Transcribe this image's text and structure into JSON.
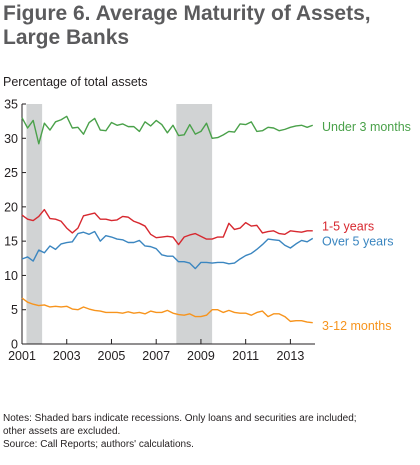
{
  "figure": {
    "title_line1": "Figure 6. Average Maturity of Assets,",
    "title_line2": "Large Banks",
    "notes_line1": "Notes: Shaded bars indicate recessions. Only loans and securities are included;",
    "notes_line2": "other assets are excluded.",
    "source": "Source: Call Reports; authors' calculations."
  },
  "chart_data": {
    "type": "line",
    "title": "Figure 6. Average Maturity of Assets, Large Banks",
    "ylabel": "Percentage of total assets",
    "xlabel": "",
    "xlim": [
      2001,
      2014.1
    ],
    "ylim": [
      0,
      35
    ],
    "x_ticks": [
      2001,
      2003,
      2005,
      2007,
      2009,
      2011,
      2013
    ],
    "y_ticks": [
      0,
      5,
      10,
      15,
      20,
      25,
      30,
      35
    ],
    "grid": false,
    "legend": "direct labels at right end of each line",
    "recessions": [
      [
        2001.2,
        2001.9
      ],
      [
        2007.9,
        2009.5
      ]
    ],
    "series": [
      {
        "name": "Under 3 months",
        "color": "#4aa14a",
        "x": [
          2001.0,
          2001.25,
          2001.5,
          2001.75,
          2002.0,
          2002.25,
          2002.5,
          2002.75,
          2003.0,
          2003.25,
          2003.5,
          2003.75,
          2004.0,
          2004.25,
          2004.5,
          2004.75,
          2005.0,
          2005.25,
          2005.5,
          2005.75,
          2006.0,
          2006.25,
          2006.5,
          2006.75,
          2007.0,
          2007.25,
          2007.5,
          2007.75,
          2008.0,
          2008.25,
          2008.5,
          2008.75,
          2009.0,
          2009.25,
          2009.5,
          2009.75,
          2010.0,
          2010.25,
          2010.5,
          2010.75,
          2011.0,
          2011.25,
          2011.5,
          2011.75,
          2012.0,
          2012.25,
          2012.5,
          2012.75,
          2013.0,
          2013.25,
          2013.5,
          2013.75,
          2014.0
        ],
        "values": [
          33.0,
          31.5,
          32.6,
          29.2,
          32.2,
          31.2,
          32.4,
          32.7,
          33.2,
          31.5,
          31.6,
          30.6,
          32.3,
          32.9,
          31.2,
          31.1,
          32.3,
          31.9,
          32.1,
          31.7,
          31.7,
          31.0,
          32.4,
          31.8,
          32.6,
          32.0,
          30.8,
          31.9,
          30.4,
          30.5,
          32.0,
          30.6,
          31.0,
          32.2,
          30.0,
          30.1,
          30.5,
          31.0,
          30.9,
          32.1,
          32.0,
          32.4,
          31.0,
          31.1,
          31.6,
          31.5,
          31.1,
          31.3,
          31.6,
          31.8,
          31.9,
          31.6,
          31.9
        ]
      },
      {
        "name": "1-5 years",
        "color": "#d7282f",
        "x": [
          2001.0,
          2001.25,
          2001.5,
          2001.75,
          2002.0,
          2002.25,
          2002.5,
          2002.75,
          2003.0,
          2003.25,
          2003.5,
          2003.75,
          2004.0,
          2004.25,
          2004.5,
          2004.75,
          2005.0,
          2005.25,
          2005.5,
          2005.75,
          2006.0,
          2006.25,
          2006.5,
          2006.75,
          2007.0,
          2007.25,
          2007.5,
          2007.75,
          2008.0,
          2008.25,
          2008.5,
          2008.75,
          2009.0,
          2009.25,
          2009.5,
          2009.75,
          2010.0,
          2010.25,
          2010.5,
          2010.75,
          2011.0,
          2011.25,
          2011.5,
          2011.75,
          2012.0,
          2012.25,
          2012.5,
          2012.75,
          2013.0,
          2013.25,
          2013.5,
          2013.75,
          2014.0
        ],
        "values": [
          18.8,
          18.2,
          18.0,
          18.6,
          19.6,
          18.3,
          18.2,
          17.9,
          16.9,
          16.2,
          16.9,
          18.7,
          18.9,
          19.1,
          18.2,
          18.2,
          18.0,
          18.1,
          18.6,
          18.5,
          17.9,
          17.6,
          17.2,
          16.0,
          15.5,
          15.6,
          15.7,
          15.6,
          14.5,
          15.6,
          15.9,
          16.1,
          15.7,
          15.3,
          15.3,
          15.6,
          15.6,
          17.6,
          16.7,
          16.9,
          17.7,
          17.2,
          17.3,
          16.2,
          16.4,
          16.5,
          16.1,
          16.0,
          16.5,
          16.4,
          16.3,
          16.5,
          16.5
        ]
      },
      {
        "name": "Over 5 years",
        "color": "#3b86c0",
        "x": [
          2001.0,
          2001.25,
          2001.5,
          2001.75,
          2002.0,
          2002.25,
          2002.5,
          2002.75,
          2003.0,
          2003.25,
          2003.5,
          2003.75,
          2004.0,
          2004.25,
          2004.5,
          2004.75,
          2005.0,
          2005.25,
          2005.5,
          2005.75,
          2006.0,
          2006.25,
          2006.5,
          2006.75,
          2007.0,
          2007.25,
          2007.5,
          2007.75,
          2008.0,
          2008.25,
          2008.5,
          2008.75,
          2009.0,
          2009.25,
          2009.5,
          2009.75,
          2010.0,
          2010.25,
          2010.5,
          2010.75,
          2011.0,
          2011.25,
          2011.5,
          2011.75,
          2012.0,
          2012.25,
          2012.5,
          2012.75,
          2013.0,
          2013.25,
          2013.5,
          2013.75,
          2014.0
        ],
        "values": [
          12.4,
          12.7,
          12.1,
          13.7,
          13.3,
          14.3,
          13.8,
          14.6,
          14.8,
          14.9,
          16.1,
          16.3,
          16.0,
          16.4,
          15.0,
          15.8,
          15.6,
          15.3,
          15.2,
          14.8,
          14.8,
          15.1,
          14.3,
          14.2,
          13.9,
          13.0,
          12.8,
          12.8,
          12.0,
          12.0,
          11.8,
          11.0,
          11.9,
          11.9,
          11.8,
          11.9,
          11.9,
          11.7,
          11.8,
          12.4,
          12.9,
          13.2,
          13.8,
          14.5,
          15.3,
          15.2,
          15.1,
          14.4,
          14.0,
          14.6,
          15.1,
          14.9,
          15.4
        ]
      },
      {
        "name": "3-12 months",
        "color": "#f7941d",
        "x": [
          2001.0,
          2001.25,
          2001.5,
          2001.75,
          2002.0,
          2002.25,
          2002.5,
          2002.75,
          2003.0,
          2003.25,
          2003.5,
          2003.75,
          2004.0,
          2004.25,
          2004.5,
          2004.75,
          2005.0,
          2005.25,
          2005.5,
          2005.75,
          2006.0,
          2006.25,
          2006.5,
          2006.75,
          2007.0,
          2007.25,
          2007.5,
          2007.75,
          2008.0,
          2008.25,
          2008.5,
          2008.75,
          2009.0,
          2009.25,
          2009.5,
          2009.75,
          2010.0,
          2010.25,
          2010.5,
          2010.75,
          2011.0,
          2011.25,
          2011.5,
          2011.75,
          2012.0,
          2012.25,
          2012.5,
          2012.75,
          2013.0,
          2013.25,
          2013.5,
          2013.75,
          2014.0
        ],
        "values": [
          6.7,
          6.1,
          5.8,
          5.6,
          5.7,
          5.4,
          5.5,
          5.4,
          5.5,
          5.1,
          5.0,
          5.4,
          5.1,
          4.9,
          4.8,
          4.6,
          4.6,
          4.6,
          4.5,
          4.7,
          4.5,
          4.6,
          4.4,
          4.8,
          4.6,
          4.6,
          4.9,
          4.5,
          4.3,
          4.2,
          4.4,
          4.0,
          4.0,
          4.2,
          5.0,
          5.0,
          4.6,
          4.9,
          4.6,
          4.5,
          4.5,
          4.2,
          4.6,
          4.8,
          4.0,
          4.4,
          4.4,
          4.0,
          3.3,
          3.4,
          3.4,
          3.2,
          3.1
        ]
      }
    ],
    "line_labels": [
      "Under 3 months",
      "1-5 years",
      "Over 5 years",
      "3-12 months"
    ]
  }
}
